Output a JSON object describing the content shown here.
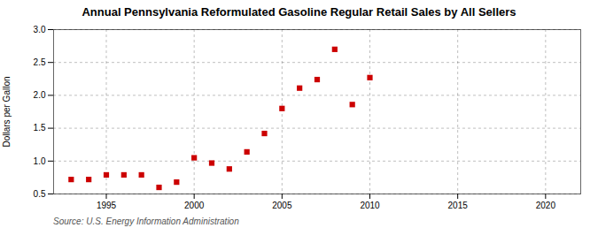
{
  "chart_data": {
    "type": "scatter",
    "title": "Annual Pennsylvania Reformulated Gasoline Regular Retail Sales by All Sellers",
    "ylabel": "Dollars per Gallon",
    "source": "Source: U.S. Energy Information Administration",
    "x": [
      1993,
      1994,
      1995,
      1996,
      1997,
      1998,
      1999,
      2000,
      2001,
      2002,
      2003,
      2004,
      2005,
      2006,
      2007,
      2008,
      2009,
      2010
    ],
    "values": [
      0.72,
      0.72,
      0.79,
      0.79,
      0.79,
      0.6,
      0.68,
      1.05,
      0.97,
      0.88,
      1.14,
      1.42,
      1.8,
      2.11,
      2.24,
      2.7,
      1.86,
      2.27
    ],
    "color": "#cc0000",
    "marker": "square",
    "grid": true,
    "xlim": [
      1992,
      2022
    ],
    "ylim": [
      0.5,
      3.0
    ],
    "xticks": [
      1995,
      2000,
      2005,
      2010,
      2015,
      2020
    ],
    "yticks": [
      0.5,
      {
        "value": 1.0,
        "label": "1.0"
      },
      1.5,
      {
        "value": 2.0,
        "label": "2.0"
      },
      2.5,
      {
        "value": 3.0,
        "label": "3.0"
      }
    ]
  }
}
